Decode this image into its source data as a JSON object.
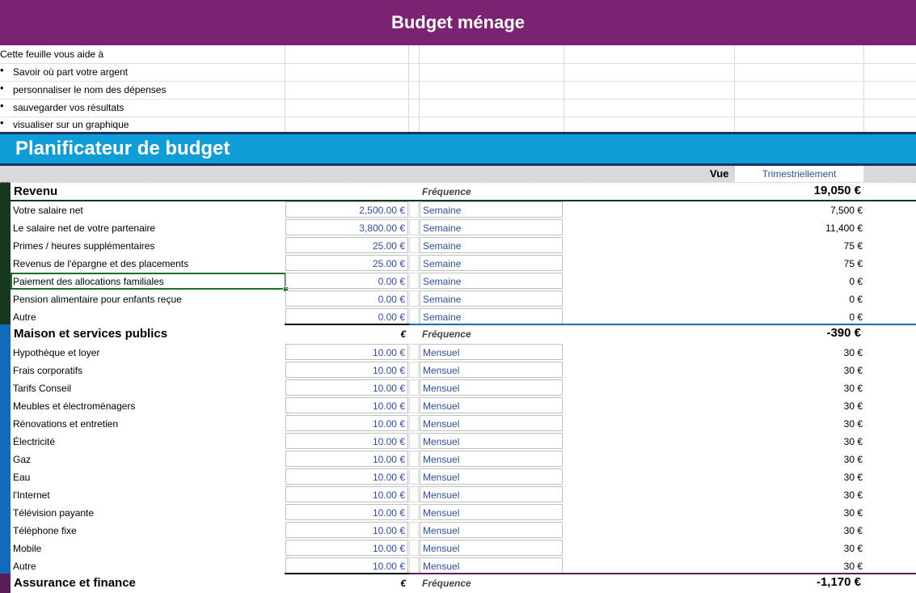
{
  "header": {
    "title": "Budget ménage"
  },
  "intro": {
    "heading": "Cette feuille vous aide à",
    "bullets": [
      "Savoir où part votre argent",
      "personnaliser le nom des dépenses",
      "sauvegarder vos résultats",
      "visualiser sur un graphique"
    ],
    "bullet_glyph": "•"
  },
  "planner": {
    "title": "Planificateur de budget"
  },
  "view": {
    "label": "Vue",
    "value": "Trimestriellement"
  },
  "colors": {
    "title_bg": "#7b2272",
    "planner_bg": "#0f9dd7",
    "revenue_stripe": "#17381f",
    "house_stripe": "#0f6cbd",
    "insurance_stripe": "#5a1f5a",
    "input_text": "#2e4ea0"
  },
  "sections": [
    {
      "name": "Revenu",
      "currency": "",
      "freq_header": "Fréquence",
      "total": "19,050 €",
      "rows": [
        {
          "label": "Votre salaire net",
          "amount": "2,500.00 €",
          "freq": "Semaine",
          "result": "7,500 €"
        },
        {
          "label": "Le salaire net de votre partenaire",
          "amount": "3,800.00 €",
          "freq": "Semaine",
          "result": "11,400 €"
        },
        {
          "label": "Primes / heures supplémentaires",
          "amount": "25.00 €",
          "freq": "Semaine",
          "result": "75 €"
        },
        {
          "label": "Revenus de l'épargne et des placements",
          "amount": "25.00 €",
          "freq": "Semaine",
          "result": "75 €"
        },
        {
          "label": "Paiement des allocations familiales",
          "amount": "0.00 €",
          "freq": "Semaine",
          "result": "0 €"
        },
        {
          "label": "Pension alimentaire pour enfants reçue",
          "amount": "0.00 €",
          "freq": "Semaine",
          "result": "0 €"
        },
        {
          "label": "Autre",
          "amount": "0.00 €",
          "freq": "Semaine",
          "result": "0 €"
        }
      ]
    },
    {
      "name": "Maison et services publics",
      "currency": "€",
      "freq_header": "Fréquence",
      "total": "-390 €",
      "rows": [
        {
          "label": "Hypothèque et loyer",
          "amount": "10.00 €",
          "freq": "Mensuel",
          "result": "30 €"
        },
        {
          "label": "Frais corporatifs",
          "amount": "10.00 €",
          "freq": "Mensuel",
          "result": "30 €"
        },
        {
          "label": "Tarifs Conseil",
          "amount": "10.00 €",
          "freq": "Mensuel",
          "result": "30 €"
        },
        {
          "label": "Meubles et électroménagers",
          "amount": "10.00 €",
          "freq": "Mensuel",
          "result": "30 €"
        },
        {
          "label": "Rénovations et entretien",
          "amount": "10.00 €",
          "freq": "Mensuel",
          "result": "30 €"
        },
        {
          "label": "Électricité",
          "amount": "10.00 €",
          "freq": "Mensuel",
          "result": "30 €"
        },
        {
          "label": "Gaz",
          "amount": "10.00 €",
          "freq": "Mensuel",
          "result": "30 €"
        },
        {
          "label": "Eau",
          "amount": "10.00 €",
          "freq": "Mensuel",
          "result": "30 €"
        },
        {
          "label": "l'Internet",
          "amount": "10.00 €",
          "freq": "Mensuel",
          "result": "30 €"
        },
        {
          "label": "Télévision payante",
          "amount": "10.00 €",
          "freq": "Mensuel",
          "result": "30 €"
        },
        {
          "label": "Téléphone fixe",
          "amount": "10.00 €",
          "freq": "Mensuel",
          "result": "30 €"
        },
        {
          "label": "Mobile",
          "amount": "10.00 €",
          "freq": "Mensuel",
          "result": "30 €"
        },
        {
          "label": "Autre",
          "amount": "10.00 €",
          "freq": "Mensuel",
          "result": "30 €"
        }
      ]
    },
    {
      "name": "Assurance et finance",
      "currency": "€",
      "freq_header": "Fréquence",
      "total": "-1,170 €",
      "rows": []
    }
  ]
}
